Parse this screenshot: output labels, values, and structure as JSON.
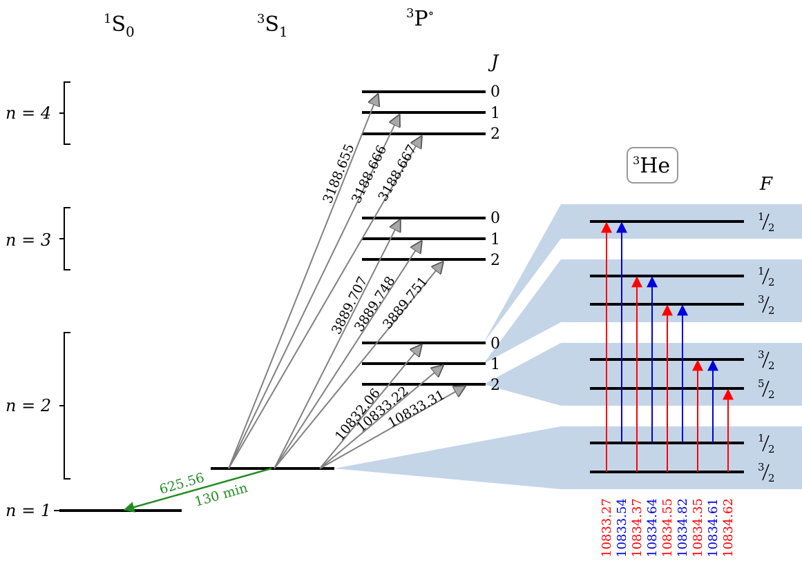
{
  "terms": [
    {
      "sup": "1",
      "base": "S",
      "sub": "0"
    },
    {
      "sup": "3",
      "base": "S",
      "sub": "1"
    },
    {
      "sup": "3",
      "base": "P",
      "post": "∘"
    }
  ],
  "n_labels": [
    "n = 4",
    "n = 3",
    "n = 2",
    "n = 1"
  ],
  "j_header": "J",
  "j_values": [
    "0",
    "1",
    "2"
  ],
  "ground_transition": {
    "wavelength": "625.56",
    "lifetime": "130 min",
    "color": "#228b22"
  },
  "transitions": {
    "n4": [
      "3188.655",
      "3188.666",
      "3188.667"
    ],
    "n3": [
      "3889.707",
      "3889.748",
      "3889.751"
    ],
    "n2": [
      "10832.06",
      "10833.22",
      "10833.31"
    ]
  },
  "he3_label": {
    "sup": "3",
    "base": "He"
  },
  "f_header": "F",
  "f_levels": [
    {
      "num": "1",
      "den": "2"
    },
    {
      "num": "1",
      "den": "2"
    },
    {
      "num": "3",
      "den": "2"
    },
    {
      "num": "3",
      "den": "2"
    },
    {
      "num": "5",
      "den": "2"
    },
    {
      "num": "1",
      "den": "2"
    },
    {
      "num": "3",
      "den": "2"
    }
  ],
  "he3_lines": [
    {
      "value": "10833.27",
      "color": "red"
    },
    {
      "value": "10833.54",
      "color": "blue"
    },
    {
      "value": "10834.37",
      "color": "red"
    },
    {
      "value": "10834.64",
      "color": "blue"
    },
    {
      "value": "10834.55",
      "color": "red"
    },
    {
      "value": "10834.82",
      "color": "blue"
    },
    {
      "value": "10834.35",
      "color": "red"
    },
    {
      "value": "10834.61",
      "color": "blue"
    },
    {
      "value": "10834.62",
      "color": "red"
    }
  ],
  "colors": {
    "red": "#ff0000",
    "blue": "#0000dd",
    "band": "#c5d5e8",
    "arrow": "#808080",
    "green": "#228b22"
  }
}
